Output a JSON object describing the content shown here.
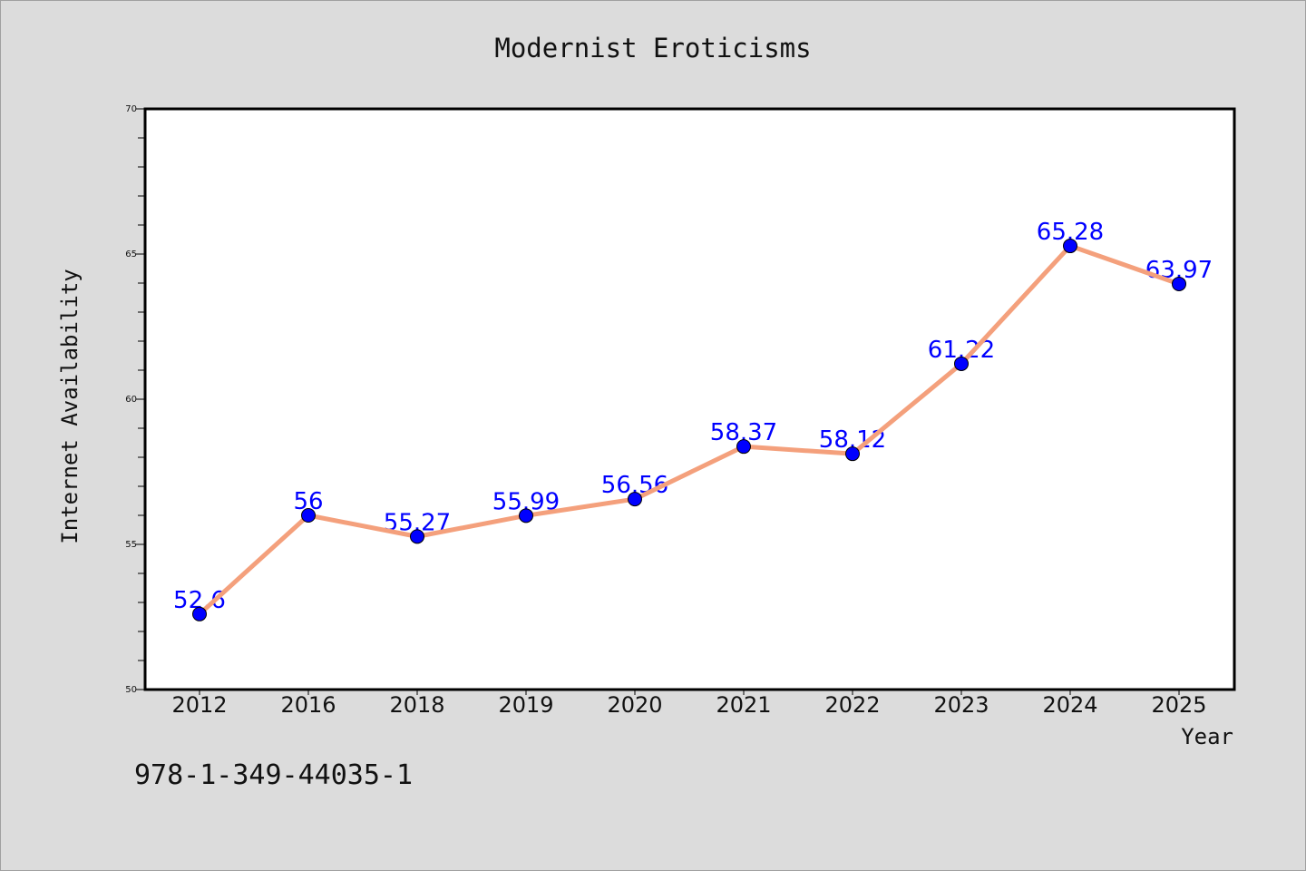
{
  "chart_data": {
    "type": "line",
    "title": "Modernist Eroticisms",
    "xlabel": "Year",
    "ylabel": "Internet Availability",
    "categories": [
      "2012",
      "2016",
      "2018",
      "2019",
      "2020",
      "2021",
      "2022",
      "2023",
      "2024",
      "2025"
    ],
    "series": [
      {
        "values": [
          52.6,
          56,
          55.27,
          55.99,
          56.56,
          58.37,
          58.12,
          61.22,
          65.28,
          63.97
        ],
        "data_labels": [
          "52.6",
          "56",
          "55.27",
          "55.99",
          "56.56",
          "58.37",
          "58.12",
          "61.22",
          "65.28",
          "63.97"
        ]
      }
    ],
    "ylim": [
      50,
      70
    ],
    "yticks": [
      "50",
      "55",
      "60",
      "65",
      "70"
    ],
    "y_minor_step": 1,
    "grid": false,
    "line_color": "#f4a07c",
    "marker_color": "#0000ff",
    "label_color": "#0000ff"
  },
  "caption": "978-1-349-44035-1"
}
